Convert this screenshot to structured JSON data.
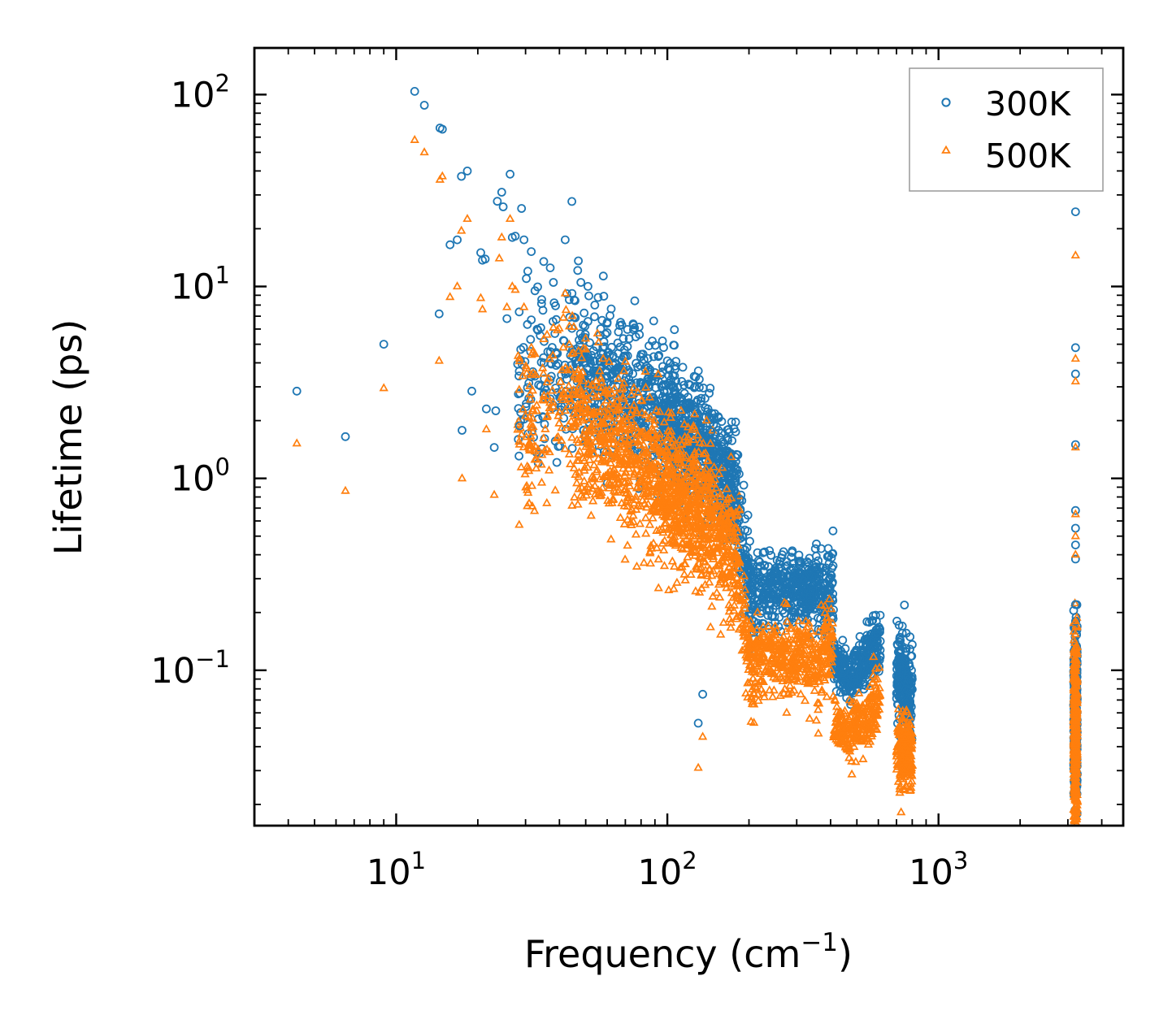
{
  "chart_data": {
    "type": "scatter",
    "title": "",
    "xlabel": {
      "base": "Frequency (cm",
      "sup": "−1",
      "close": ")"
    },
    "ylabel": "Lifetime (ps)",
    "xscale": "log",
    "yscale": "log",
    "xlim": [
      3.0,
      4800
    ],
    "ylim": [
      0.0155,
      175
    ],
    "x_ticks": [
      {
        "value": 10,
        "base": "10",
        "exp": "1"
      },
      {
        "value": 100,
        "base": "10",
        "exp": "2"
      },
      {
        "value": 1000,
        "base": "10",
        "exp": "3"
      }
    ],
    "y_ticks": [
      {
        "value": 0.1,
        "base": "10",
        "exp": "−1"
      },
      {
        "value": 1,
        "base": "10",
        "exp": "0"
      },
      {
        "value": 10,
        "base": "10",
        "exp": "1"
      },
      {
        "value": 100,
        "base": "10",
        "exp": "2"
      }
    ],
    "legend": {
      "position": "top-right"
    },
    "series": [
      {
        "name": "300K",
        "marker": "circle",
        "color": "#1f77b4",
        "points": [
          [
            4.3,
            2.85
          ],
          [
            6.5,
            1.65
          ],
          [
            9.0,
            5.0
          ],
          [
            11.7,
            104
          ],
          [
            12.7,
            88
          ],
          [
            14.5,
            67
          ],
          [
            14.8,
            66
          ],
          [
            14.4,
            7.2
          ],
          [
            15.8,
            16.5
          ],
          [
            16.8,
            17.5
          ],
          [
            17.4,
            37.5
          ],
          [
            18.3,
            40
          ],
          [
            19.0,
            2.85
          ],
          [
            17.5,
            1.78
          ],
          [
            20.5,
            15.0
          ],
          [
            20.8,
            13.7
          ],
          [
            21.3,
            13.9
          ],
          [
            21.5,
            2.3
          ],
          [
            23.0,
            1.45
          ],
          [
            23.3,
            2.25
          ],
          [
            23.6,
            27.8
          ],
          [
            24.5,
            31
          ],
          [
            24.8,
            26
          ],
          [
            25.6,
            6.8
          ],
          [
            26.3,
            38.5
          ],
          [
            26.8,
            18.0
          ],
          [
            27.5,
            18.3
          ],
          [
            28.5,
            1.88
          ],
          [
            29.0,
            25.5
          ],
          [
            29.6,
            17.5
          ],
          [
            30.2,
            11.0
          ],
          [
            31.5,
            6.7
          ],
          [
            31.5,
            15.2
          ],
          [
            32.5,
            9.5
          ],
          [
            35.0,
            13.5
          ],
          [
            37.0,
            12.5
          ],
          [
            38.0,
            10.5
          ],
          [
            42.0,
            17.5
          ],
          [
            44.5,
            9.2
          ],
          [
            48.0,
            10.5
          ],
          [
            54.0,
            8.0
          ],
          [
            60.0,
            6.5
          ],
          [
            66.0,
            5.8
          ],
          [
            75.0,
            6.3
          ],
          [
            88.0,
            5.2
          ],
          [
            100.0,
            4.1
          ],
          [
            113.0,
            3.2
          ],
          [
            128.0,
            2.5
          ],
          [
            145.0,
            1.75
          ],
          [
            165.0,
            1.2
          ],
          [
            173.0,
            1.05
          ],
          [
            185.0,
            0.78
          ],
          [
            130.0,
            0.053
          ],
          [
            135.0,
            0.075
          ],
          [
            215.0,
            0.41
          ],
          [
            250.0,
            0.34
          ],
          [
            305.0,
            0.37
          ],
          [
            395.0,
            0.36
          ],
          [
            495.0,
            0.12
          ],
          [
            590.0,
            0.18
          ],
          [
            720.0,
            0.14
          ],
          [
            800.0,
            0.09
          ],
          [
            3200.0,
            24.5
          ],
          [
            3200.0,
            4.8
          ],
          [
            3200.0,
            3.5
          ],
          [
            3200.0,
            1.5
          ],
          [
            3200.0,
            0.68
          ],
          [
            3200.0,
            0.55
          ],
          [
            3200.0,
            0.45
          ],
          [
            3200.0,
            0.38
          ],
          [
            3200.0,
            0.22
          ],
          [
            3200.0,
            0.18
          ]
        ]
      },
      {
        "name": "500K",
        "marker": "triangle",
        "color": "#ff7f0e",
        "points": [
          [
            4.3,
            1.52
          ],
          [
            6.5,
            0.86
          ],
          [
            9.0,
            2.95
          ],
          [
            11.7,
            58
          ],
          [
            12.7,
            50
          ],
          [
            14.5,
            36
          ],
          [
            14.8,
            37.5
          ],
          [
            14.4,
            4.1
          ],
          [
            15.8,
            8.8
          ],
          [
            16.8,
            10.0
          ],
          [
            17.4,
            19.5
          ],
          [
            18.3,
            22.5
          ],
          [
            17.5,
            1.0
          ],
          [
            20.5,
            8.7
          ],
          [
            20.8,
            7.6
          ],
          [
            21.5,
            1.8
          ],
          [
            23.0,
            0.82
          ],
          [
            24.0,
            14.0
          ],
          [
            24.5,
            18.0
          ],
          [
            25.6,
            7.8
          ],
          [
            26.3,
            22.5
          ],
          [
            26.8,
            10.0
          ],
          [
            27.5,
            9.6
          ],
          [
            28.5,
            1.5
          ],
          [
            29.6,
            7.8
          ],
          [
            31.5,
            4.8
          ],
          [
            33.0,
            2.4
          ],
          [
            36.0,
            5.6
          ],
          [
            38.0,
            6.1
          ],
          [
            42.0,
            9.2
          ],
          [
            45.0,
            4.5
          ],
          [
            50.0,
            4.7
          ],
          [
            58.0,
            4.2
          ],
          [
            66.0,
            3.3
          ],
          [
            78.0,
            2.8
          ],
          [
            90.0,
            2.0
          ],
          [
            105.0,
            1.6
          ],
          [
            120.0,
            1.2
          ],
          [
            140.0,
            0.95
          ],
          [
            165.0,
            0.65
          ],
          [
            178.0,
            0.55
          ],
          [
            130.0,
            0.031
          ],
          [
            135.0,
            0.045
          ],
          [
            215.0,
            0.2
          ],
          [
            250.0,
            0.17
          ],
          [
            305.0,
            0.18
          ],
          [
            395.0,
            0.17
          ],
          [
            470.0,
            0.055
          ],
          [
            590.0,
            0.08
          ],
          [
            720.0,
            0.024
          ],
          [
            800.0,
            0.032
          ],
          [
            3200.0,
            14.5
          ],
          [
            3200.0,
            4.2
          ],
          [
            3200.0,
            3.2
          ],
          [
            3200.0,
            1.45
          ],
          [
            3200.0,
            0.65
          ],
          [
            3200.0,
            0.5
          ],
          [
            3200.0,
            0.4
          ],
          [
            3200.0,
            0.18
          ]
        ]
      }
    ],
    "clouds": [
      {
        "series": 0,
        "count": 2600,
        "seed": 7,
        "segments": [
          {
            "x": [
              28,
              45
            ],
            "y0": 2.8,
            "y1": 4.0,
            "spread": 0.45,
            "weight": 0.05
          },
          {
            "x": [
              45,
              95
            ],
            "y0": 4.0,
            "y1": 2.2,
            "spread": 0.35,
            "weight": 0.16
          },
          {
            "x": [
              95,
              150
            ],
            "y0": 2.2,
            "y1": 1.3,
            "spread": 0.32,
            "weight": 0.18
          },
          {
            "x": [
              150,
              185
            ],
            "y0": 1.2,
            "y1": 0.7,
            "spread": 0.3,
            "weight": 0.08
          },
          {
            "x": [
              185,
              210
            ],
            "y0": 0.55,
            "y1": 0.2,
            "spread": 0.25,
            "weight": 0.04
          },
          {
            "x": [
              210,
              330
            ],
            "y0": 0.26,
            "y1": 0.27,
            "spread": 0.18,
            "weight": 0.11
          },
          {
            "x": [
              330,
              410
            ],
            "y0": 0.25,
            "y1": 0.27,
            "spread": 0.22,
            "weight": 0.06
          },
          {
            "x": [
              410,
              470
            ],
            "y0": 0.11,
            "y1": 0.09,
            "spread": 0.12,
            "weight": 0.04
          },
          {
            "x": [
              470,
              610
            ],
            "y0": 0.09,
            "y1": 0.14,
            "spread": 0.15,
            "weight": 0.08
          },
          {
            "x": [
              700,
              800
            ],
            "y0": 0.1,
            "y1": 0.07,
            "spread": 0.25,
            "weight": 0.08
          },
          {
            "x": [
              3150,
              3250
            ],
            "y0": 0.06,
            "y1": 0.06,
            "spread": 0.45,
            "weight": 0.12
          }
        ]
      },
      {
        "series": 1,
        "count": 2800,
        "seed": 13,
        "segments": [
          {
            "x": [
              28,
              45
            ],
            "y0": 1.7,
            "y1": 2.5,
            "spread": 0.45,
            "weight": 0.05
          },
          {
            "x": [
              45,
              95
            ],
            "y0": 1.9,
            "y1": 1.0,
            "spread": 0.4,
            "weight": 0.2
          },
          {
            "x": [
              95,
              150
            ],
            "y0": 0.9,
            "y1": 0.55,
            "spread": 0.38,
            "weight": 0.2
          },
          {
            "x": [
              150,
              185
            ],
            "y0": 0.5,
            "y1": 0.35,
            "spread": 0.35,
            "weight": 0.07
          },
          {
            "x": [
              185,
              210
            ],
            "y0": 0.2,
            "y1": 0.09,
            "spread": 0.25,
            "weight": 0.03
          },
          {
            "x": [
              210,
              330
            ],
            "y0": 0.11,
            "y1": 0.12,
            "spread": 0.2,
            "weight": 0.1
          },
          {
            "x": [
              330,
              410
            ],
            "y0": 0.1,
            "y1": 0.12,
            "spread": 0.25,
            "weight": 0.05
          },
          {
            "x": [
              410,
              470
            ],
            "y0": 0.05,
            "y1": 0.045,
            "spread": 0.1,
            "weight": 0.03
          },
          {
            "x": [
              470,
              610
            ],
            "y0": 0.045,
            "y1": 0.07,
            "spread": 0.15,
            "weight": 0.06
          },
          {
            "x": [
              700,
              800
            ],
            "y0": 0.04,
            "y1": 0.035,
            "spread": 0.2,
            "weight": 0.07
          },
          {
            "x": [
              3150,
              3250
            ],
            "y0": 0.045,
            "y1": 0.045,
            "spread": 0.45,
            "weight": 0.14
          }
        ]
      }
    ]
  }
}
